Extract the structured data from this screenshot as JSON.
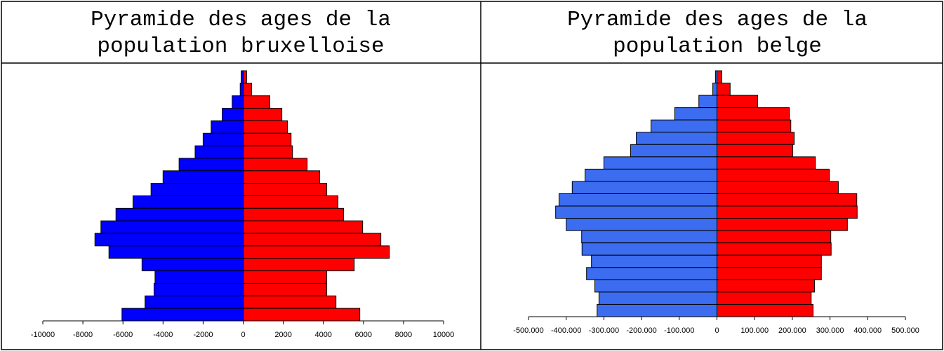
{
  "chart_data": [
    {
      "type": "pyramid",
      "title": "Pyramide des ages de la population bruxelloise",
      "categories": [
        null,
        null,
        null,
        null,
        null,
        null,
        null,
        null,
        null,
        null,
        null,
        null,
        null,
        null,
        null,
        null,
        null,
        null,
        null,
        null
      ],
      "series": [
        {
          "color": "#0000ff",
          "values": [
            -100,
            -150,
            -550,
            -1050,
            -1600,
            -2000,
            -2400,
            -3200,
            -4000,
            -4600,
            -5500,
            -6350,
            -7100,
            -7400,
            -6700,
            -5050,
            -4400,
            -4450,
            -4900,
            -6050
          ]
        },
        {
          "color": "#ff0000",
          "values": [
            170,
            420,
            1330,
            1930,
            2210,
            2390,
            2460,
            3190,
            3820,
            4170,
            4730,
            5010,
            5960,
            6870,
            7290,
            5540,
            4170,
            4170,
            4630,
            5820
          ]
        }
      ],
      "xlim": [
        -10000,
        10000
      ],
      "xticks": [
        -10000,
        -8000,
        -6000,
        -4000,
        -2000,
        0,
        2000,
        4000,
        6000,
        8000,
        10000
      ]
    },
    {
      "type": "pyramid",
      "title": "Pyramide des ages de la population belge",
      "categories": [
        null,
        null,
        null,
        null,
        null,
        null,
        null,
        null,
        null,
        null,
        null,
        null,
        null,
        null,
        null,
        null,
        null,
        null,
        null,
        null
      ],
      "series": [
        {
          "color": "#3c6cf0",
          "values": [
            -4000,
            -11000,
            -48000,
            -112000,
            -175000,
            -214000,
            -229000,
            -300000,
            -350000,
            -384000,
            -419000,
            -428000,
            -400000,
            -359000,
            -358000,
            -333000,
            -346000,
            -324000,
            -313000,
            -318000
          ]
        },
        {
          "color": "#ff0000",
          "values": [
            13000,
            35000,
            108000,
            192000,
            196000,
            205000,
            201000,
            261000,
            298000,
            322000,
            371000,
            372000,
            346000,
            302000,
            303000,
            277000,
            277000,
            259000,
            250000,
            255000
          ]
        }
      ],
      "xlim": [
        -500000,
        500000
      ],
      "xticks": [
        {
          "value": -500000,
          "label": "-500.000"
        },
        {
          "value": -400000,
          "label": "-400.000"
        },
        {
          "value": -300000,
          "label": "-300.000"
        },
        {
          "value": -200000,
          "label": "-200.000"
        },
        {
          "value": -100000,
          "label": "-100.000"
        },
        0,
        {
          "value": 100000,
          "label": "100.000"
        },
        {
          "value": 200000,
          "label": "200.000"
        },
        {
          "value": 300000,
          "label": "300.000"
        },
        {
          "value": 400000,
          "label": "400.000"
        },
        {
          "value": 500000,
          "label": "500.000"
        }
      ]
    }
  ]
}
